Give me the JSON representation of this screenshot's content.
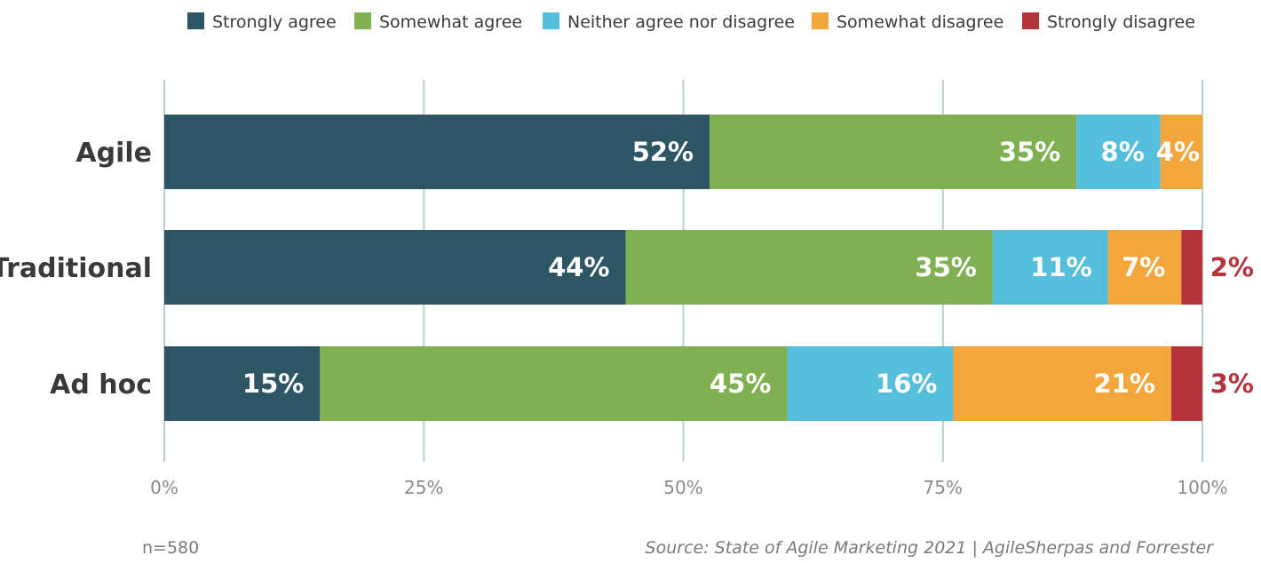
{
  "chart_data": {
    "type": "bar",
    "orientation": "horizontal",
    "stacked": true,
    "categories": [
      "Agile",
      "Traditional",
      "Ad hoc"
    ],
    "series": [
      {
        "name": "Strongly agree",
        "color": "#2d5564",
        "values": [
          52,
          44,
          15
        ]
      },
      {
        "name": "Somewhat agree",
        "color": "#7fb153",
        "values": [
          35,
          35,
          45
        ]
      },
      {
        "name": "Neither agree nor disagree",
        "color": "#55bedb",
        "values": [
          8,
          11,
          16
        ]
      },
      {
        "name": "Somewhat disagree",
        "color": "#f2a63b",
        "values": [
          4,
          7,
          21
        ]
      },
      {
        "name": "Strongly disagree",
        "color": "#b5333a",
        "values": [
          0,
          2,
          3
        ]
      }
    ],
    "data_labels": [
      [
        "52%",
        "35%",
        "8%",
        "4%",
        ""
      ],
      [
        "44%",
        "35%",
        "11%",
        "7%",
        "2%"
      ],
      [
        "15%",
        "45%",
        "16%",
        "21%",
        "3%"
      ]
    ],
    "xlim": [
      0,
      100
    ],
    "ticks": [
      0,
      25,
      50,
      75,
      100
    ],
    "tick_labels": [
      "0%",
      "25%",
      "50%",
      "75%",
      "100%"
    ],
    "grid": true,
    "legend_position": "top",
    "xlabel": "",
    "ylabel": ""
  },
  "notes": {
    "sample_size": "n=580",
    "source": "Source: State of Agile Marketing 2021 | AgileSherpas and Forrester"
  }
}
